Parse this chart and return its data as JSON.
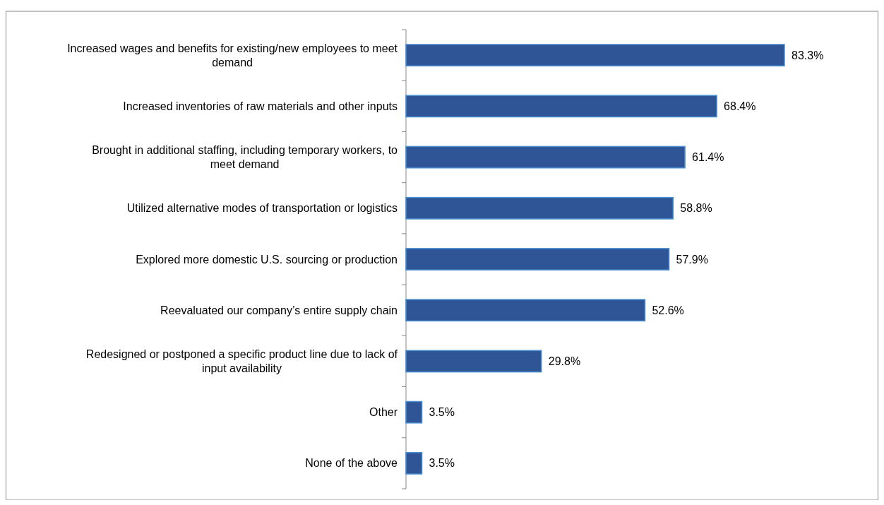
{
  "chart_data": {
    "type": "bar",
    "orientation": "horizontal",
    "color": "#2f5597",
    "value_labels": [
      "83.3%",
      "68.4%",
      "61.4%",
      "58.8%",
      "57.9%",
      "52.6%",
      "29.8%",
      "3.5%",
      "3.5%"
    ],
    "categories": [
      "Increased wages and benefits for existing/new employees to meet demand",
      "Increased inventories of raw materials and other inputs",
      "Brought in additional staffing, including temporary workers, to meet demand",
      "Utilized alternative modes of transportation or logistics",
      "Explored more domestic U.S. sourcing or production",
      "Reevaluated our company’s entire supply chain",
      "Redesigned or postponed a specific product line due to lack of input availability",
      "Other",
      "None of the above"
    ],
    "values": [
      83.3,
      68.4,
      61.4,
      58.8,
      57.9,
      52.6,
      29.8,
      3.5,
      3.5
    ]
  }
}
